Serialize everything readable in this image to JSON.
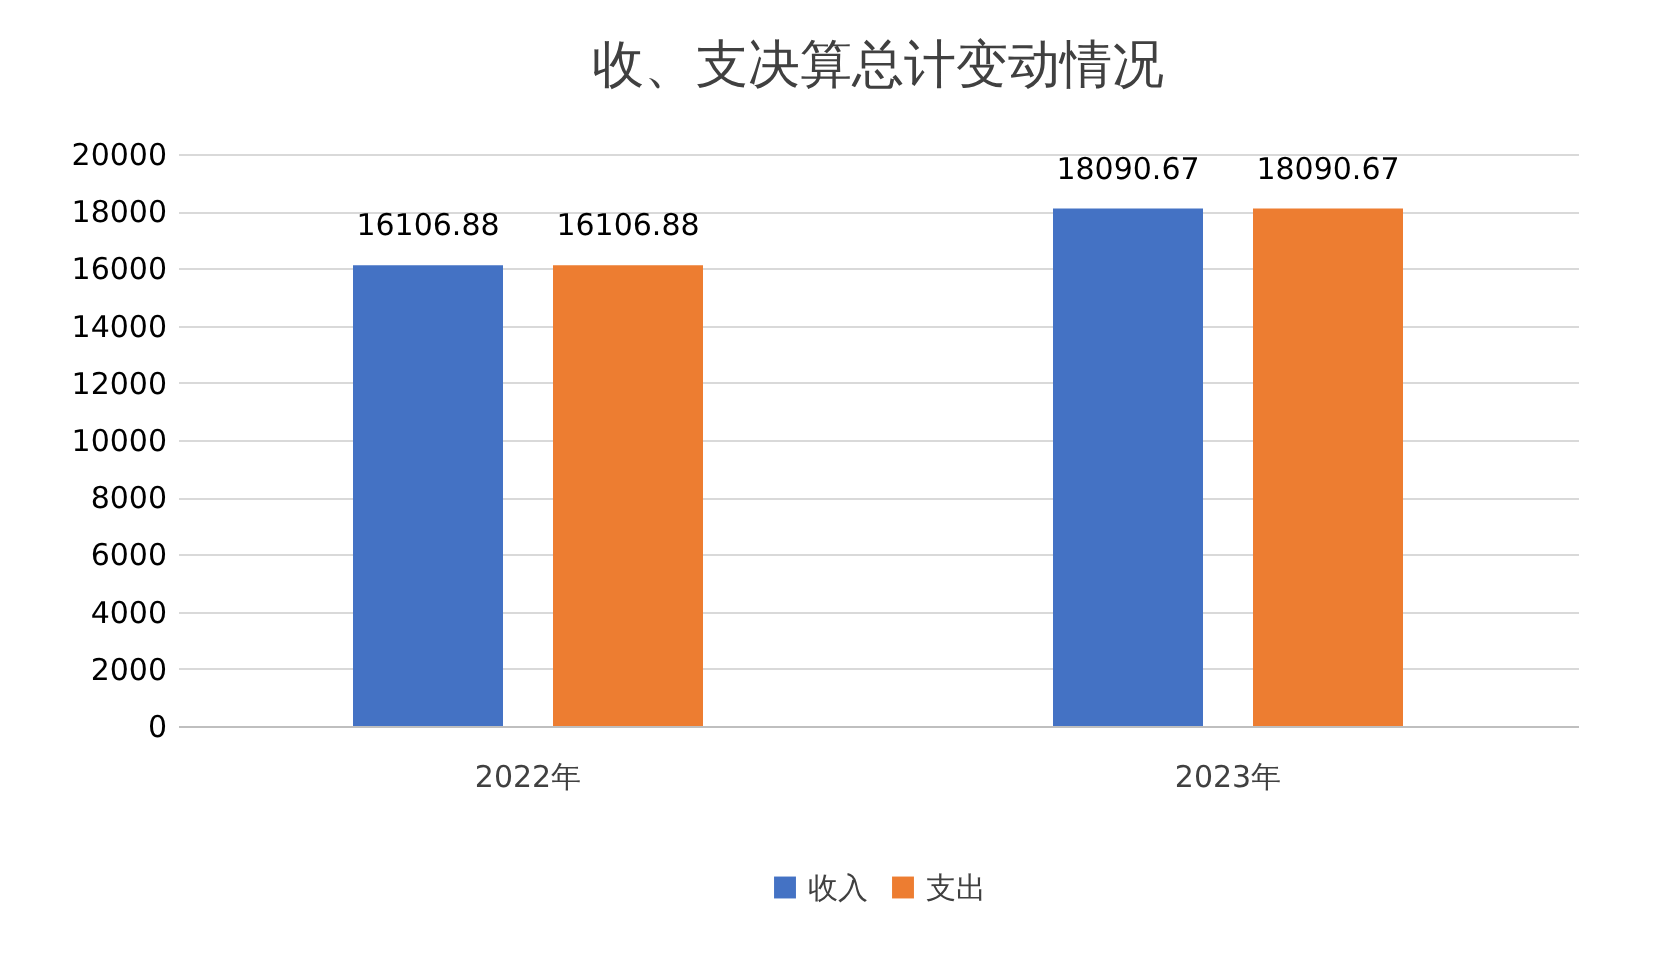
{
  "chart_data": {
    "type": "bar",
    "title": "收、支决算总计变动情况",
    "categories": [
      "2022年",
      "2023年"
    ],
    "series": [
      {
        "name": "收入",
        "color": "#4472c4",
        "values": [
          16106.88,
          18090.67
        ]
      },
      {
        "name": "支出",
        "color": "#ed7d31",
        "values": [
          16106.88,
          18090.67
        ]
      }
    ],
    "ylim": [
      0,
      20000
    ],
    "yticks": [
      0,
      2000,
      4000,
      6000,
      8000,
      10000,
      12000,
      14000,
      16000,
      18000,
      20000
    ],
    "grid": "y",
    "legend": "bottom",
    "data_labels": true
  }
}
